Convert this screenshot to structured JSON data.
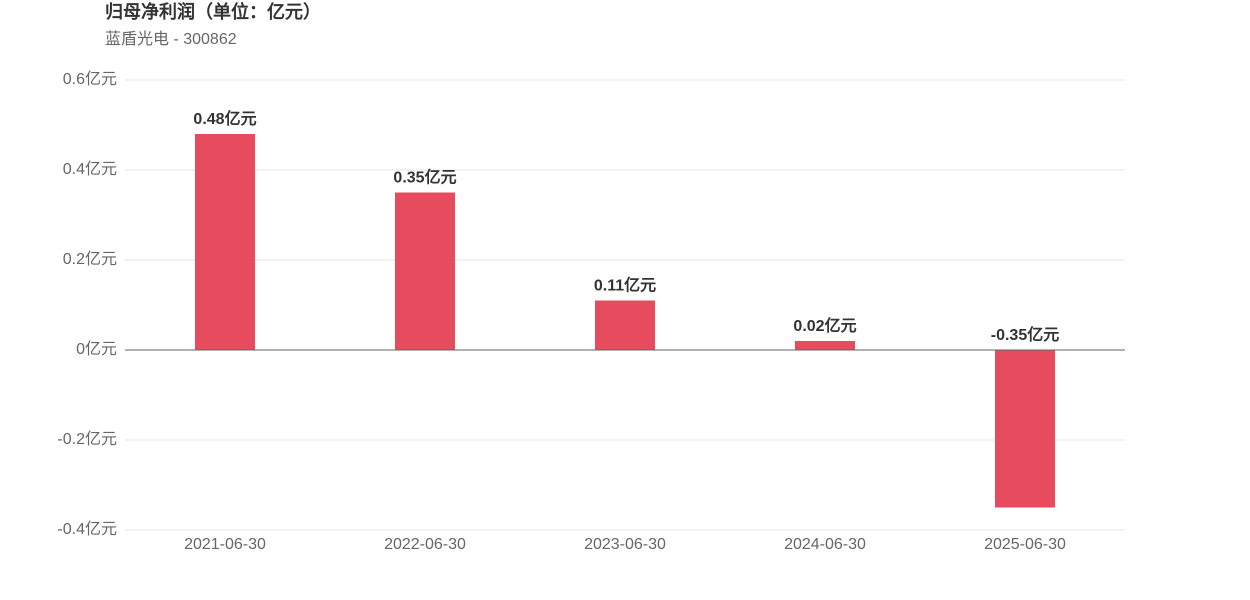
{
  "chart_data": {
    "type": "bar",
    "title": "归母净利润（单位：亿元）",
    "subtitle": "蓝盾光电 - 300862",
    "categories": [
      "2021-06-30",
      "2022-06-30",
      "2023-06-30",
      "2024-06-30",
      "2025-06-30"
    ],
    "values": [
      0.48,
      0.35,
      0.11,
      0.02,
      -0.35
    ],
    "value_labels": [
      "0.48亿元",
      "0.35亿元",
      "0.11亿元",
      "0.02亿元",
      "-0.35亿元"
    ],
    "color": "#e64c5e",
    "ylim": [
      -0.4,
      0.6
    ],
    "yticks": [
      {
        "value": -0.4,
        "label": "-0.4亿元"
      },
      {
        "value": -0.2,
        "label": "-0.2亿元"
      },
      {
        "value": 0,
        "label": "0亿元"
      },
      {
        "value": 0.2,
        "label": "0.2亿元"
      },
      {
        "value": 0.4,
        "label": "0.4亿元"
      },
      {
        "value": 0.6,
        "label": "0.6亿元"
      }
    ],
    "grid": true
  }
}
